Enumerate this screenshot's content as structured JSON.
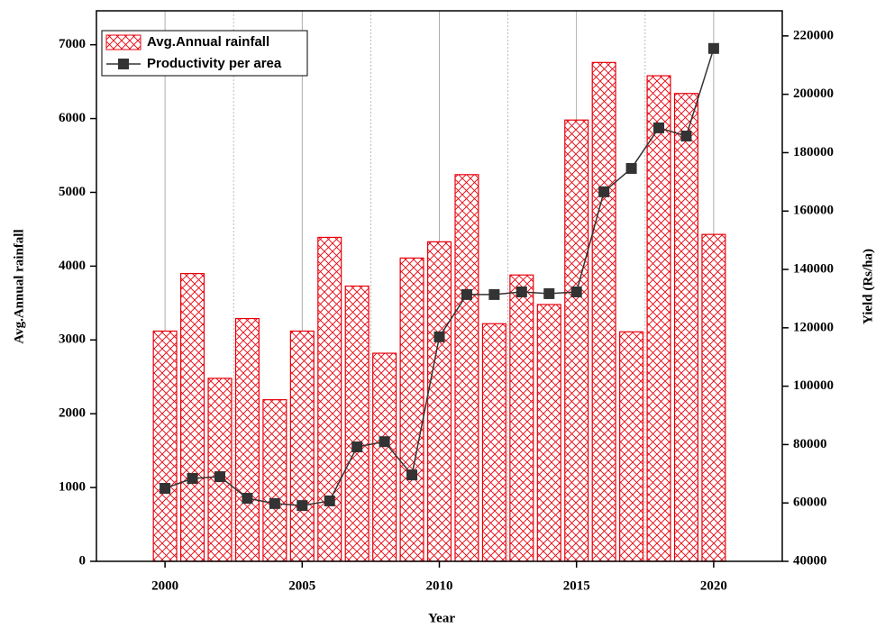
{
  "chart_data": {
    "type": "bar_line",
    "x_label": "Year",
    "y_label": "Avg.Annual rainfall",
    "y2_label": "Yield (Rs/ha)",
    "categories": [
      2000,
      2001,
      2002,
      2003,
      2004,
      2005,
      2006,
      2007,
      2008,
      2009,
      2010,
      2011,
      2012,
      2013,
      2014,
      2015,
      2016,
      2017,
      2018,
      2019,
      2020
    ],
    "series": [
      {
        "name": "Avg.Annual rainfall",
        "type": "bar",
        "color": "#e8000b",
        "axis": "y",
        "values": [
          3120,
          3900,
          2480,
          3290,
          2190,
          3120,
          4390,
          3730,
          2820,
          4110,
          4330,
          5240,
          3220,
          3880,
          3480,
          5980,
          6760,
          3110,
          6580,
          6340,
          4430
        ]
      },
      {
        "name": "Productivity per area",
        "type": "line",
        "color": "#333333",
        "axis": "y2",
        "values": [
          65000,
          68400,
          69000,
          61600,
          59800,
          59100,
          60700,
          79200,
          81000,
          69600,
          116900,
          131400,
          131400,
          132300,
          131700,
          132300,
          166600,
          174600,
          188500,
          185700,
          215700
        ]
      }
    ],
    "xlim": [
      1997.5,
      2022.5
    ],
    "xticks": [
      2000,
      2005,
      2010,
      2015,
      2020
    ],
    "ylim": [
      0,
      7460
    ],
    "yticks": [
      0,
      1000,
      2000,
      3000,
      4000,
      5000,
      6000,
      7000
    ],
    "y2lim": [
      40000,
      228600
    ],
    "y2ticks": [
      40000,
      60000,
      80000,
      100000,
      120000,
      140000,
      160000,
      180000,
      200000,
      220000
    ],
    "grid": true,
    "legend": "upper left"
  }
}
